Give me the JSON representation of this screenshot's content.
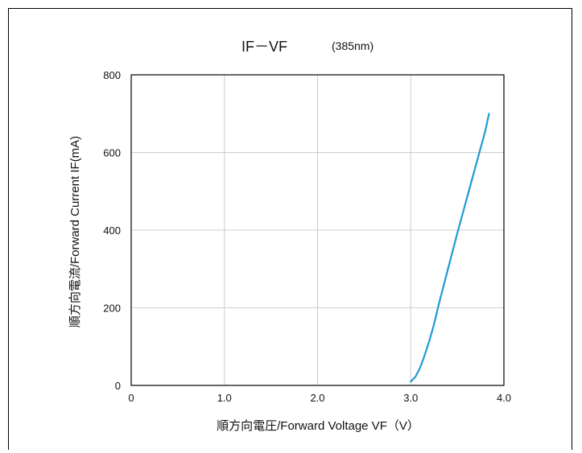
{
  "chart_data": {
    "type": "line",
    "title_main": "IF－VF",
    "title_sub": "(385nm)",
    "xlabel": "順方向電圧/Forward Voltage VF（V）",
    "ylabel": "順方向電流/Forward Current IF(mA)",
    "xlim": [
      0,
      4.0
    ],
    "ylim": [
      0,
      800
    ],
    "x_ticks": [
      "0",
      "1.0",
      "2.0",
      "3.0",
      "4.0"
    ],
    "x_tick_values": [
      0,
      1.0,
      2.0,
      3.0,
      4.0
    ],
    "y_ticks": [
      "0",
      "200",
      "400",
      "600",
      "800"
    ],
    "y_tick_values": [
      0,
      200,
      400,
      600,
      800
    ],
    "grid": true,
    "series": [
      {
        "color": "#1f9ad6",
        "x": [
          3.0,
          3.05,
          3.1,
          3.15,
          3.2,
          3.25,
          3.3,
          3.4,
          3.5,
          3.6,
          3.7,
          3.8,
          3.84
        ],
        "y": [
          10,
          22,
          45,
          78,
          115,
          158,
          208,
          300,
          392,
          480,
          568,
          655,
          700
        ]
      }
    ]
  }
}
